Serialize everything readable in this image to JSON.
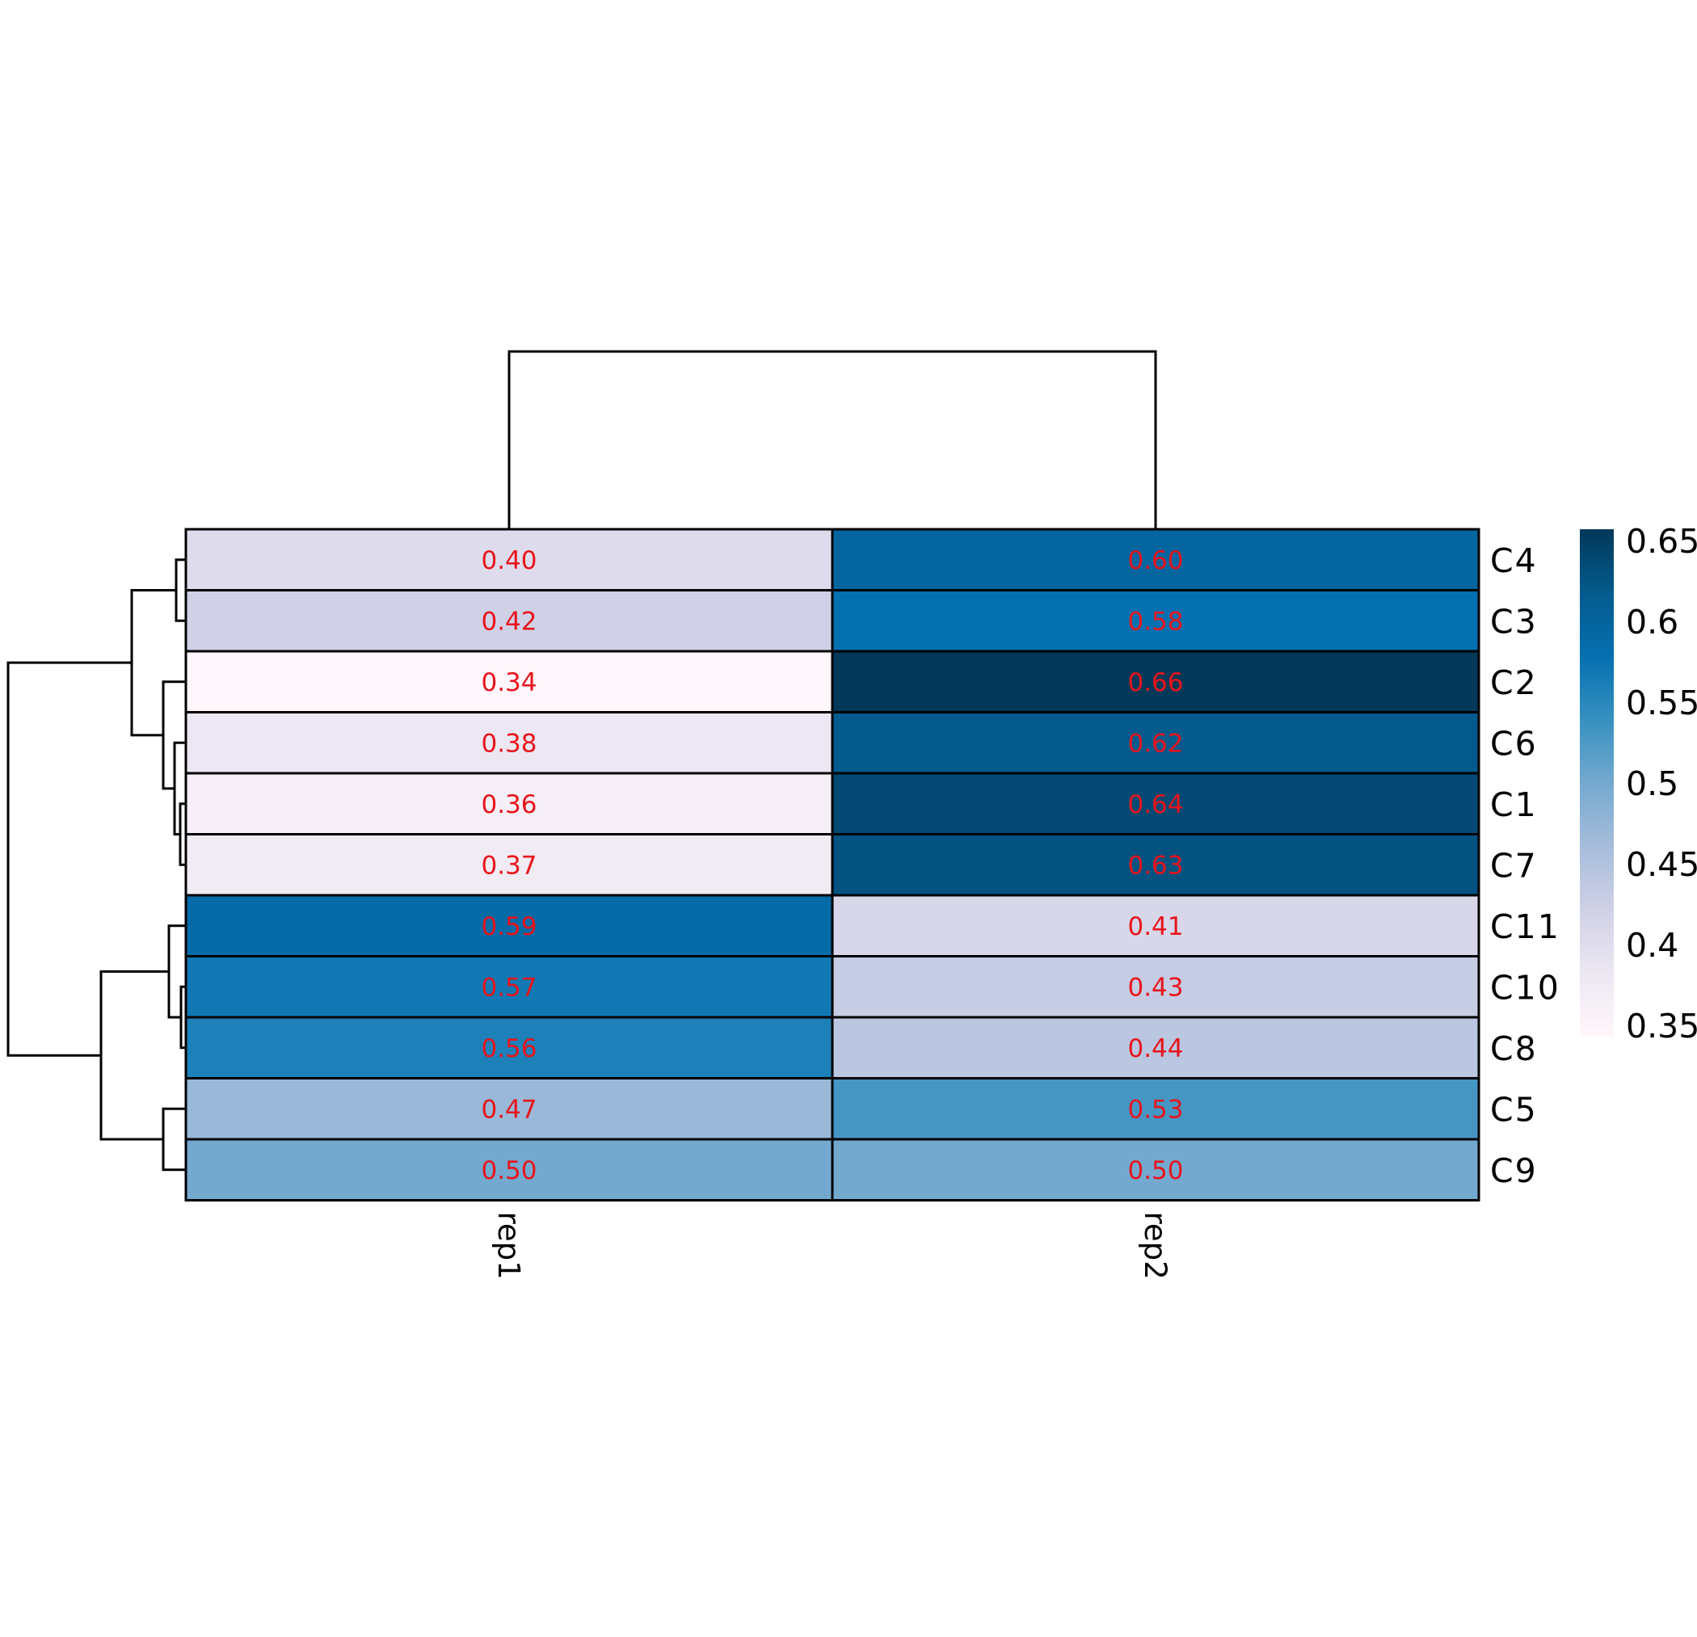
{
  "chart_data": {
    "type": "heatmap",
    "columns": [
      "rep1",
      "rep2"
    ],
    "rows": [
      "C4",
      "C3",
      "C2",
      "C6",
      "C1",
      "C7",
      "C11",
      "C10",
      "C8",
      "C5",
      "C9"
    ],
    "values": [
      [
        0.4,
        0.6
      ],
      [
        0.42,
        0.58
      ],
      [
        0.34,
        0.66
      ],
      [
        0.38,
        0.62
      ],
      [
        0.36,
        0.64
      ],
      [
        0.37,
        0.63
      ],
      [
        0.59,
        0.41
      ],
      [
        0.57,
        0.43
      ],
      [
        0.56,
        0.44
      ],
      [
        0.47,
        0.53
      ],
      [
        0.5,
        0.5
      ]
    ],
    "cell_labels": [
      [
        "0.40",
        "0.60"
      ],
      [
        "0.42",
        "0.58"
      ],
      [
        "0.34",
        "0.66"
      ],
      [
        "0.38",
        "0.62"
      ],
      [
        "0.36",
        "0.64"
      ],
      [
        "0.37",
        "0.63"
      ],
      [
        "0.59",
        "0.41"
      ],
      [
        "0.57",
        "0.43"
      ],
      [
        "0.56",
        "0.44"
      ],
      [
        "0.47",
        "0.53"
      ],
      [
        "0.50",
        "0.50"
      ]
    ],
    "legend": {
      "ticks": [
        "0.65",
        "0.6",
        "0.55",
        "0.5",
        "0.45",
        "0.4",
        "0.35"
      ],
      "range": [
        0.34,
        0.66
      ],
      "colors": [
        "#fff7fb",
        "#ece7f2",
        "#d0d1e6",
        "#a6bddb",
        "#74a9cf",
        "#3690c0",
        "#0570b0",
        "#045a8d",
        "#023858"
      ]
    },
    "cell_text_color": "#e8141c",
    "row_dendrogram": true,
    "column_dendrogram": true
  }
}
